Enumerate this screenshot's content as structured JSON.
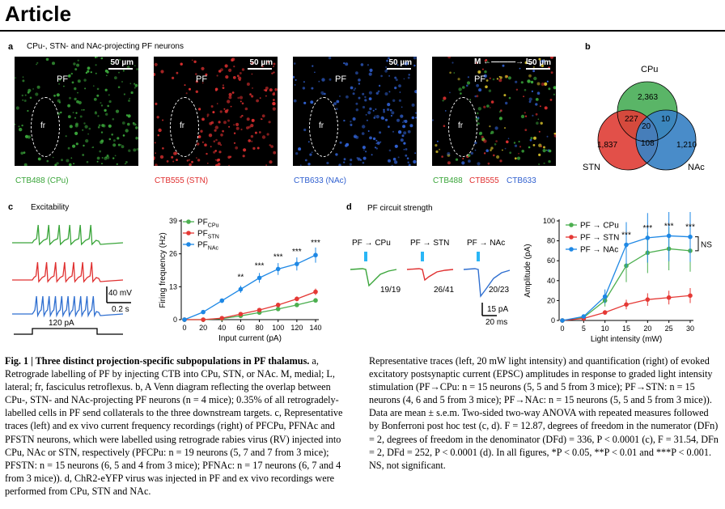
{
  "header": {
    "title": "Article"
  },
  "panel_a": {
    "letter": "a",
    "title": "CPu-, STN- and NAc-projecting PF neurons",
    "scale": "50 µm",
    "pf": "PF",
    "fr": "fr",
    "orientation": "M ←———→ L",
    "images": [
      {
        "label": "CTB488 (CPu)",
        "color": "#3aa53a"
      },
      {
        "label": "CTB555 (STN)",
        "color": "#e03030"
      },
      {
        "label": "CTB633 (NAc)",
        "color": "#3060d0"
      }
    ],
    "merge_labels": [
      "CTB488",
      "CTB555",
      "CTB633"
    ]
  },
  "panel_b": {
    "letter": "b",
    "sets": [
      "CPu",
      "STN",
      "NAc"
    ],
    "counts": {
      "cpu_only": "2,363",
      "stn_only": "1,837",
      "nac_only": "1,210",
      "cpu_stn": "227",
      "cpu_nac": "10",
      "stn_nac": "108",
      "all": "20"
    },
    "colors": {
      "cpu": "#4caf5a",
      "stn": "#e0413a",
      "nac": "#3a82c4"
    }
  },
  "panel_c": {
    "letter": "c",
    "title": "Excitability",
    "scale_mv": "40 mV",
    "scale_s": "0.2 s",
    "step": "120 pA"
  },
  "panel_d": {
    "letter": "d",
    "title": "PF circuit strength",
    "trace_labels": [
      "PF → CPu",
      "PF → STN",
      "PF → NAc"
    ],
    "ratios": [
      "19/19",
      "26/41",
      "20/23"
    ],
    "scale_pa": "15 pA",
    "scale_ms": "20 ms"
  },
  "chart_data": [
    {
      "type": "line",
      "panel": "c",
      "xlabel": "Input current (pA)",
      "ylabel": "Firing frequency (Hz)",
      "x": [
        0,
        20,
        40,
        60,
        80,
        100,
        120,
        140
      ],
      "ylim": [
        0,
        39
      ],
      "yticks": [
        0,
        13,
        26,
        39
      ],
      "series": [
        {
          "name": "PFCPu",
          "color": "#4caf50",
          "values": [
            0,
            0,
            0.4,
            1.5,
            2.8,
            4.2,
            5.8,
            7.6
          ]
        },
        {
          "name": "PFSTN",
          "color": "#e53935",
          "values": [
            0,
            0,
            0.6,
            2.2,
            3.8,
            5.8,
            8.2,
            11
          ]
        },
        {
          "name": "PFNAc",
          "color": "#1e88e5",
          "values": [
            0,
            3,
            7.5,
            12,
            16.5,
            20,
            22,
            25.5
          ]
        }
      ],
      "significance": [
        {
          "x": 60,
          "label": "**"
        },
        {
          "x": 80,
          "label": "***"
        },
        {
          "x": 100,
          "label": "***"
        },
        {
          "x": 120,
          "label": "***"
        },
        {
          "x": 140,
          "label": "***"
        }
      ]
    },
    {
      "type": "line",
      "panel": "d",
      "xlabel": "Light intensity (mW)",
      "ylabel": "Amplitude (pA)",
      "x": [
        0,
        5,
        10,
        15,
        20,
        25,
        30
      ],
      "ylim": [
        0,
        100
      ],
      "yticks": [
        0,
        20,
        40,
        60,
        80,
        100
      ],
      "series": [
        {
          "name": "PF → CPu",
          "color": "#4caf50",
          "values": [
            0,
            3,
            20,
            55,
            68,
            72,
            70
          ]
        },
        {
          "name": "PF → STN",
          "color": "#e53935",
          "values": [
            0,
            2,
            8,
            16,
            21,
            23,
            25
          ]
        },
        {
          "name": "PF → NAc",
          "color": "#1e88e5",
          "values": [
            0,
            4,
            24,
            76,
            83,
            85,
            84
          ]
        }
      ],
      "significance": [
        {
          "x": 15,
          "label": "***"
        },
        {
          "x": 20,
          "label": "***"
        },
        {
          "x": 25,
          "label": "***"
        },
        {
          "x": 30,
          "label": "***"
        }
      ],
      "ns_label": "NS"
    }
  ],
  "caption": {
    "left": {
      "head": "Fig. 1 | Three distinct projection-specific subpopulations in PF thalamus.",
      "body": "a, Retrograde labelling of PF by injecting CTB into CPu, STN, or NAc. M, medial; L, lateral; fr, fasciculus retroflexus. b, A Venn diagram reflecting the overlap between CPu-, STN- and NAc-projecting PF neurons (n = 4 mice); 0.35% of all retrogradely-labelled cells in PF send collaterals to the three downstream targets. c, Representative traces (left) and ex vivo current frequency recordings (right) of PFCPu, PFNAc and PFSTN neurons, which were labelled using retrograde rabies virus (RV) injected into CPu, NAc or STN, respectively (PFCPu: n = 19 neurons (5, 7 and 7 from 3 mice); PFSTN: n = 15 neurons (6, 5 and 4 from 3 mice); PFNAc: n = 17 neurons (6, 7 and 4 from 3 mice)). d, ChR2-eYFP virus was injected in PF and ex vivo recordings were performed from CPu, STN and NAc."
    },
    "right": "Representative traces (left, 20 mW light intensity) and quantification (right) of evoked excitatory postsynaptic current (EPSC) amplitudes in response to graded light intensity stimulation (PF→CPu: n = 15 neurons (5, 5 and 5 from 3 mice); PF→STN: n = 15 neurons (4, 6 and 5 from 3 mice); PF→NAc: n = 15 neurons (5, 5 and 5 from 3 mice)). Data are mean ± s.e.m. Two-sided two-way ANOVA with repeated measures followed by Bonferroni post hoc test (c, d). F = 12.87, degrees of freedom in the numerator (DFn) = 2, degrees of freedom in the denominator (DFd) = 336, P < 0.0001 (c), F = 31.54, DFn = 2, DFd = 252, P < 0.0001 (d). In all figures, *P < 0.05, **P < 0.01 and ***P < 0.001. NS, not significant."
  }
}
